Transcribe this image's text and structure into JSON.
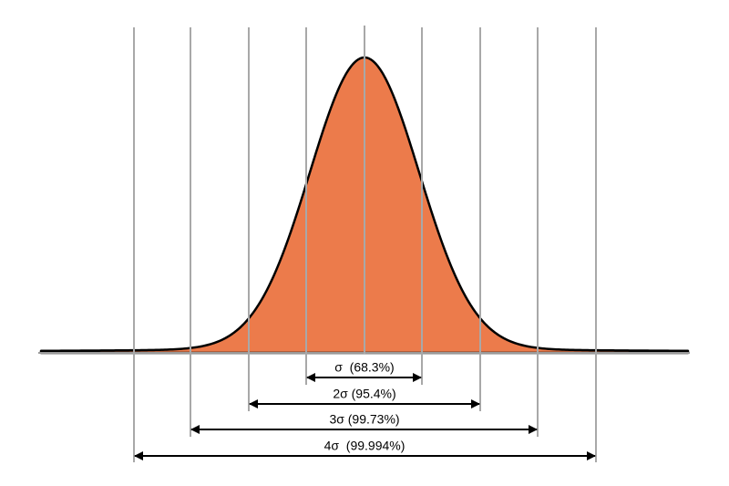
{
  "intervals": [
    {
      "label": "σ  (68.3%)"
    },
    {
      "label": "2σ (95.4%)"
    },
    {
      "label": "3σ (99.73%)"
    },
    {
      "label": "4σ  (99.994%)"
    }
  ]
}
